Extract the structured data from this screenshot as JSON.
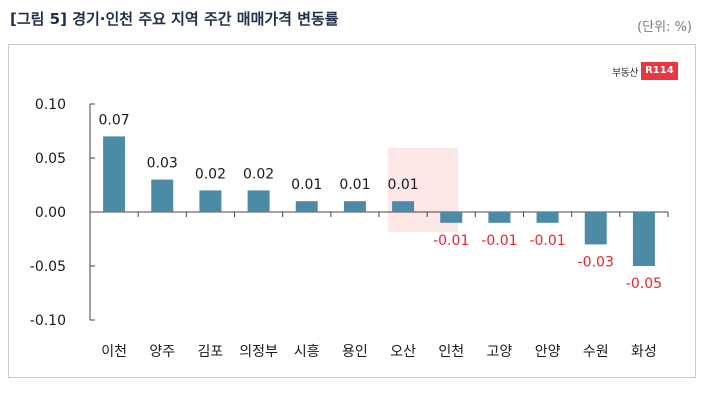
{
  "header": {
    "title": "[그림 5] 경기·인천 주요 지역 주간 매매가격 변동률",
    "unit": "(단위: %)"
  },
  "logo": {
    "text": "부동산",
    "badge": "R114",
    "badge_color": "#e8383f"
  },
  "chart_data": {
    "type": "bar",
    "title": "[그림 5] 경기·인천 주요 지역 주간 매매가격 변동률",
    "unit": "(단위: %)",
    "categories": [
      "이천",
      "양주",
      "김포",
      "의정부",
      "시흥",
      "용인",
      "오산",
      "인천",
      "고양",
      "안양",
      "수원",
      "화성"
    ],
    "values": [
      0.07,
      0.03,
      0.02,
      0.02,
      0.01,
      0.01,
      0.01,
      -0.01,
      -0.01,
      -0.01,
      -0.03,
      -0.05
    ],
    "data_labels": [
      "0.07",
      "0.03",
      "0.02",
      "0.02",
      "0.01",
      "0.01",
      "0.01",
      "-0.01",
      "-0.01",
      "-0.01",
      "-0.03",
      "-0.05"
    ],
    "ylim": [
      -0.1,
      0.1
    ],
    "yticks": [
      0.1,
      0.05,
      0.0,
      -0.05,
      -0.1
    ],
    "ytick_labels": [
      "0.10",
      "0.05",
      "0.00",
      "-0.05",
      "-0.10"
    ],
    "xlabel": "",
    "ylabel": "",
    "grid": false,
    "bar_color": "#4d8aa5",
    "positive_label_color": "#1a1a1a",
    "negative_label_color": "#e8262b"
  }
}
